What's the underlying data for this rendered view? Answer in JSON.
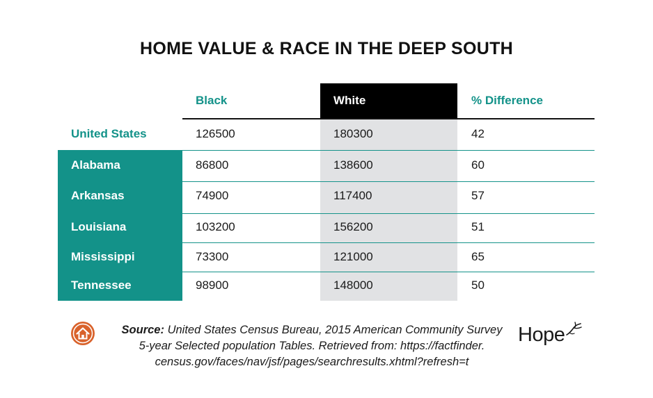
{
  "chart_data": {
    "type": "table",
    "title": "HOME VALUE & RACE IN THE DEEP SOUTH",
    "columns": [
      "Black",
      "White",
      "% Difference"
    ],
    "rows": [
      {
        "label": "United States",
        "values": [
          "126500",
          "180300",
          "42"
        ]
      },
      {
        "label": "Alabama",
        "values": [
          "86800",
          "138600",
          "60"
        ]
      },
      {
        "label": "Arkansas",
        "values": [
          "74900",
          "117400",
          "57"
        ]
      },
      {
        "label": "Louisiana",
        "values": [
          "103200",
          "156200",
          "51"
        ]
      },
      {
        "label": "Mississippi",
        "values": [
          "73300",
          "121000",
          "65"
        ]
      },
      {
        "label": "Tennessee",
        "values": [
          "98900",
          "148000",
          "50"
        ]
      }
    ]
  },
  "source": {
    "label": "Source:",
    "line1": "United States Census Bureau, 2015 American Community Survey",
    "line2": "5-year Selected population Tables. Retrieved from: https://factfinder.",
    "line3": "census.gov/faces/nav/jsf/pages/searchresults.xhtml?refresh=t"
  },
  "logo": {
    "text": "Hope",
    "icon": "dove-icon"
  },
  "badge": {
    "icon": "house-icon"
  },
  "colors": {
    "accent": "#139289",
    "badge": "#d9622b",
    "white_column": "#e1e2e4"
  }
}
